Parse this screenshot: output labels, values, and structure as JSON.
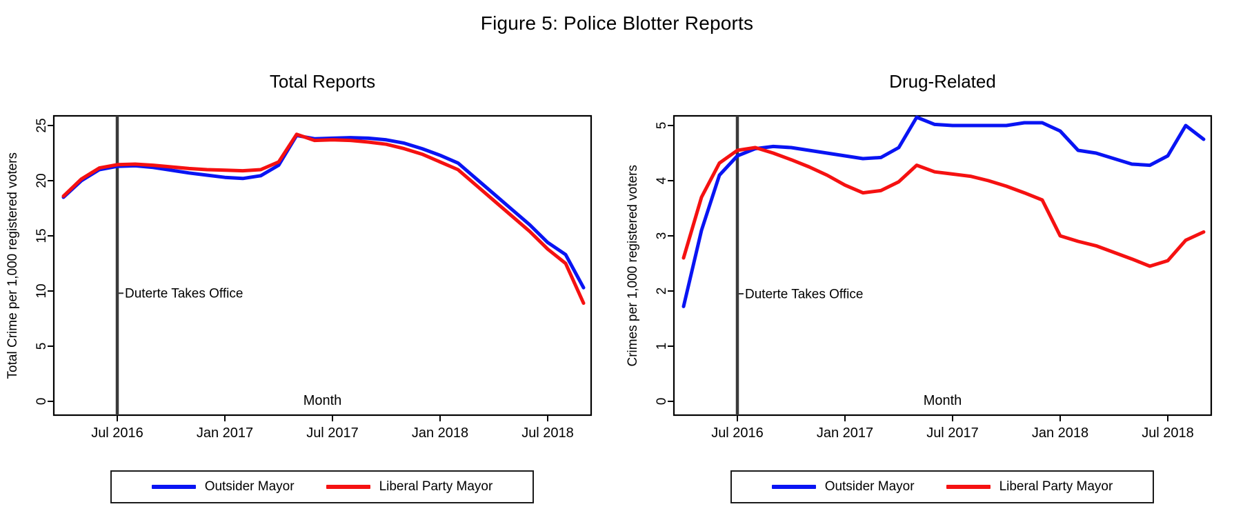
{
  "figure": {
    "title": "Figure 5: Police Blotter Reports"
  },
  "legend": {
    "items": [
      {
        "label": "Outsider Mayor",
        "color": "#0914f3"
      },
      {
        "label": "Liberal Party Mayor",
        "color": "#f51111"
      }
    ]
  },
  "chart_data": [
    {
      "type": "line",
      "title": "Total Reports",
      "xlabel": "Month",
      "ylabel": "Total Crime per 1,000 registered voters",
      "x_tick_labels": [
        "Jul 2016",
        "Jan 2017",
        "Jul 2017",
        "Jan 2018",
        "Jul 2018"
      ],
      "y_ticks": [
        0,
        5,
        10,
        15,
        20,
        25
      ],
      "ylim": [
        -1.25,
        25.875
      ],
      "grid": false,
      "x": [
        "Apr 2016",
        "May 2016",
        "Jun 2016",
        "Jul 2016",
        "Aug 2016",
        "Sep 2016",
        "Oct 2016",
        "Nov 2016",
        "Dec 2016",
        "Jan 2017",
        "Feb 2017",
        "Mar 2017",
        "Apr 2017",
        "May 2017",
        "Jun 2017",
        "Jul 2017",
        "Aug 2017",
        "Sep 2017",
        "Oct 2017",
        "Nov 2017",
        "Dec 2017",
        "Jan 2018",
        "Feb 2018",
        "Mar 2018",
        "Apr 2018",
        "May 2018",
        "Jun 2018",
        "Jul 2018",
        "Aug 2018",
        "Sep 2018"
      ],
      "series": [
        {
          "name": "Outsider Mayor",
          "color": "#0914f3",
          "values": [
            18.5,
            20.0,
            21.0,
            21.3,
            21.35,
            21.2,
            20.95,
            20.7,
            20.5,
            20.3,
            20.2,
            20.45,
            21.4,
            24.1,
            23.8,
            23.85,
            23.9,
            23.85,
            23.7,
            23.4,
            22.9,
            22.3,
            21.6,
            20.2,
            18.8,
            17.4,
            16.0,
            14.4,
            13.3,
            10.3
          ]
        },
        {
          "name": "Liberal Party Mayor",
          "color": "#f51111",
          "values": [
            18.6,
            20.15,
            21.15,
            21.45,
            21.5,
            21.4,
            21.25,
            21.1,
            21.0,
            20.95,
            20.9,
            21.0,
            21.7,
            24.2,
            23.65,
            23.7,
            23.65,
            23.5,
            23.3,
            22.9,
            22.4,
            21.7,
            21.0,
            19.6,
            18.2,
            16.8,
            15.4,
            13.8,
            12.5,
            8.9
          ]
        }
      ],
      "vline": {
        "at_x": "Jul 2016",
        "label": "Duterte Takes Office",
        "label_y": 9.8,
        "color": "#3a3a3a"
      },
      "legend_position": "bottom"
    },
    {
      "type": "line",
      "title": "Drug-Related",
      "xlabel": "Month",
      "ylabel": "Crimes per 1,000 registered voters",
      "x_tick_labels": [
        "Jul 2016",
        "Jan 2017",
        "Jul 2017",
        "Jan 2018",
        "Jul 2018"
      ],
      "y_ticks": [
        0,
        1,
        2,
        3,
        4,
        5
      ],
      "ylim": [
        -0.25,
        5.175
      ],
      "grid": false,
      "x": [
        "Apr 2016",
        "May 2016",
        "Jun 2016",
        "Jul 2016",
        "Aug 2016",
        "Sep 2016",
        "Oct 2016",
        "Nov 2016",
        "Dec 2016",
        "Jan 2017",
        "Feb 2017",
        "Mar 2017",
        "Apr 2017",
        "May 2017",
        "Jun 2017",
        "Jul 2017",
        "Aug 2017",
        "Sep 2017",
        "Oct 2017",
        "Nov 2017",
        "Dec 2017",
        "Jan 2018",
        "Feb 2018",
        "Mar 2018",
        "Apr 2018",
        "May 2018",
        "Jun 2018",
        "Jul 2018",
        "Aug 2018",
        "Sep 2018"
      ],
      "series": [
        {
          "name": "Outsider Mayor",
          "color": "#0914f3",
          "values": [
            1.72,
            3.1,
            4.1,
            4.45,
            4.58,
            4.62,
            4.6,
            4.55,
            4.5,
            4.45,
            4.4,
            4.42,
            4.6,
            5.15,
            5.02,
            5.0,
            5.0,
            5.0,
            5.0,
            5.05,
            5.05,
            4.9,
            4.55,
            4.5,
            4.4,
            4.3,
            4.28,
            4.45,
            5.0,
            4.75
          ]
        },
        {
          "name": "Liberal Party Mayor",
          "color": "#f51111",
          "values": [
            2.6,
            3.7,
            4.32,
            4.55,
            4.6,
            4.5,
            4.38,
            4.25,
            4.1,
            3.92,
            3.78,
            3.82,
            3.98,
            4.28,
            4.16,
            4.12,
            4.08,
            4.0,
            3.9,
            3.78,
            3.65,
            3.0,
            2.9,
            2.82,
            2.7,
            2.58,
            2.45,
            2.55,
            2.92,
            3.07
          ]
        }
      ],
      "vline": {
        "at_x": "Jul 2016",
        "label": "Duterte Takes Office",
        "label_y": 1.95,
        "color": "#3a3a3a"
      },
      "legend_position": "bottom"
    }
  ]
}
